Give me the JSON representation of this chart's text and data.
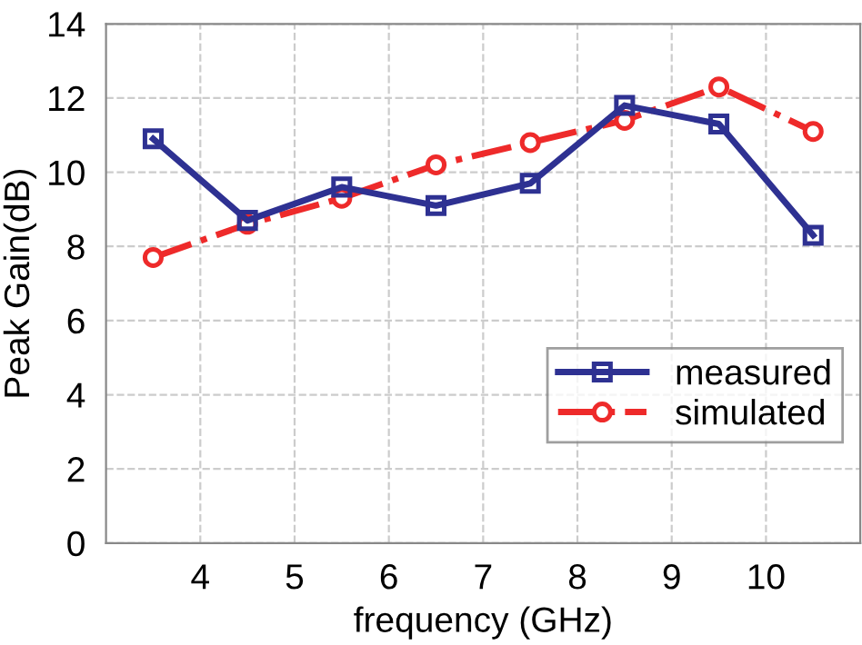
{
  "chart_data": {
    "type": "line",
    "xlabel": "frequency (GHz)",
    "ylabel": "Peak Gain(dB)",
    "x": [
      3.5,
      4.5,
      5.5,
      6.5,
      7.5,
      8.5,
      9.5,
      10.5
    ],
    "series": [
      {
        "name": "measured",
        "color": "#2e3192",
        "values": [
          10.9,
          8.7,
          9.6,
          9.1,
          9.7,
          11.8,
          11.3,
          8.3
        ],
        "marker": "square",
        "line_style": "solid"
      },
      {
        "name": "simulated",
        "color": "#ee2a2a",
        "values": [
          7.7,
          8.6,
          9.3,
          10.2,
          10.8,
          11.4,
          12.3,
          11.1
        ],
        "marker": "circle",
        "line_style": "dashdot"
      }
    ],
    "xlim": [
      3,
      11
    ],
    "xticks": [
      4,
      5,
      6,
      7,
      8,
      9,
      10
    ],
    "ylim": [
      0,
      14
    ],
    "yticks": [
      0,
      2,
      4,
      6,
      8,
      10,
      12,
      14
    ],
    "grid": true,
    "legend": "bottom right"
  }
}
